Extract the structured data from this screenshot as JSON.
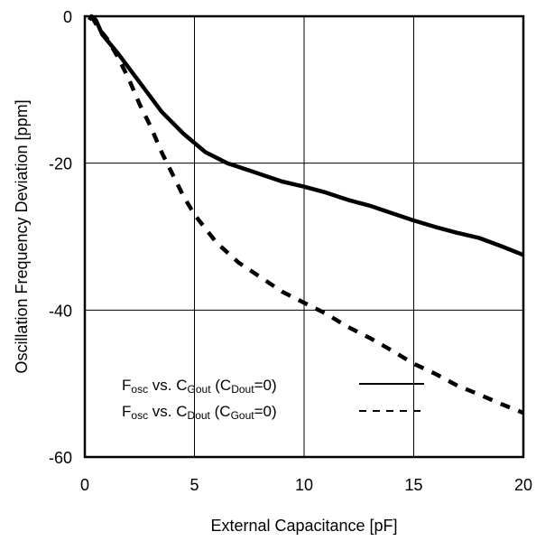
{
  "chart_data": {
    "type": "line",
    "xlabel": "External Capacitance [pF]",
    "ylabel": "Oscillation Frequency Deviation [ppm]",
    "xlim": [
      0,
      20
    ],
    "ylim": [
      -60,
      0
    ],
    "x_ticks": [
      "0",
      "5",
      "10",
      "15",
      "20"
    ],
    "y_ticks": [
      "0",
      "-20",
      "-40",
      "-60"
    ],
    "grid": true,
    "legend_position": "bottom-right",
    "series": [
      {
        "name": "Fosc vs. CGout (CDout=0)",
        "style": "solid",
        "color": "#000000",
        "x": [
          0.2,
          0.3,
          0.5,
          0.8,
          1.5,
          2.5,
          3.5,
          4.5,
          5.5,
          6.5,
          7.5,
          9,
          10,
          11,
          12,
          13,
          14,
          15,
          16,
          17,
          18,
          19,
          20
        ],
        "y": [
          -0.5,
          0,
          -0.5,
          -2.5,
          -5,
          -9,
          -13,
          -16,
          -18.5,
          -20,
          -21,
          -22.5,
          -23.2,
          -24,
          -25,
          -25.8,
          -26.8,
          -27.8,
          -28.7,
          -29.5,
          -30.2,
          -31.3,
          -32.5
        ]
      },
      {
        "name": "Fosc vs. CDout (CGout=0)",
        "style": "dashed",
        "color": "#000000",
        "x": [
          0.3,
          0.6,
          1,
          1.5,
          2,
          2.5,
          3,
          3.5,
          4,
          4.5,
          5,
          6,
          7,
          8,
          9,
          10,
          11,
          12,
          13,
          14,
          15,
          16,
          17,
          18,
          19,
          20
        ],
        "y": [
          0,
          -1.5,
          -3,
          -5.5,
          -8.5,
          -12,
          -15,
          -18.5,
          -21.5,
          -24.5,
          -27,
          -30.8,
          -33.5,
          -35.5,
          -37.5,
          -39,
          -40.5,
          -42.3,
          -43.8,
          -45.5,
          -47.3,
          -48.7,
          -50.3,
          -51.5,
          -52.8,
          -54
        ]
      }
    ],
    "legend": [
      {
        "main": "F",
        "sub": "osc",
        "vs": " vs. C",
        "sub2": "Gout",
        "cond_open": " (C",
        "sub3": "Dout",
        "cond_close": "=0)"
      },
      {
        "main": "F",
        "sub": "osc",
        "vs": " vs. C",
        "sub2": "Dout",
        "cond_open": " (C",
        "sub3": "Gout",
        "cond_close": "=0)"
      }
    ]
  }
}
